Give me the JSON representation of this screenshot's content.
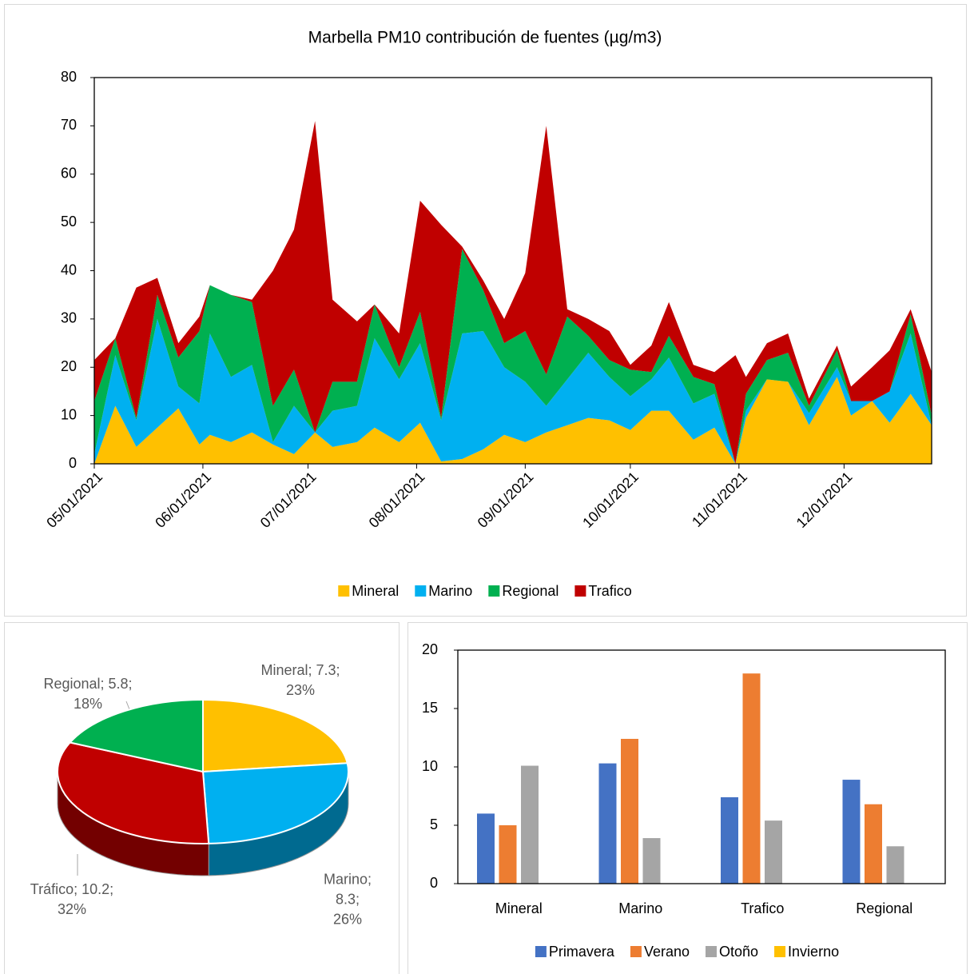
{
  "chart_data": [
    {
      "type": "area",
      "stacked": true,
      "title": "Marbella PM10 contribución de fuentes (µg/m3)",
      "x": [
        "2021-05-01",
        "2021-05-07",
        "2021-05-13",
        "2021-05-19",
        "2021-05-25",
        "2021-05-31",
        "2021-06-03",
        "2021-06-09",
        "2021-06-15",
        "2021-06-21",
        "2021-06-27",
        "2021-07-03",
        "2021-07-08",
        "2021-07-15",
        "2021-07-20",
        "2021-07-27",
        "2021-08-02",
        "2021-08-08",
        "2021-08-14",
        "2021-08-20",
        "2021-08-26",
        "2021-09-01",
        "2021-09-07",
        "2021-09-13",
        "2021-09-19",
        "2021-09-25",
        "2021-10-01",
        "2021-10-07",
        "2021-10-12",
        "2021-10-19",
        "2021-10-25",
        "2021-10-31",
        "2021-11-03",
        "2021-11-09",
        "2021-11-15",
        "2021-11-21",
        "2021-11-29",
        "2021-12-03",
        "2021-12-09",
        "2021-12-14",
        "2021-12-20",
        "2021-12-26"
      ],
      "series": [
        {
          "name": "Mineral",
          "color": "#FFC000",
          "values": [
            0,
            12,
            3.5,
            7.5,
            11.5,
            4,
            6,
            4.5,
            6.5,
            4,
            2,
            6.5,
            3.5,
            4.5,
            7.5,
            4.5,
            8.5,
            0.5,
            1,
            3,
            6,
            4.5,
            6.5,
            8,
            9.5,
            9,
            7,
            11,
            11,
            5,
            7.5,
            0,
            9.5,
            17.5,
            17,
            8,
            18,
            10,
            13,
            8.5,
            14.5,
            8
          ]
        },
        {
          "name": "Marino",
          "color": "#00B0F0",
          "values": [
            2,
            10.5,
            5.5,
            22.5,
            4.5,
            8.5,
            21,
            13.5,
            14,
            0.5,
            10,
            0,
            7.5,
            7.5,
            18.5,
            13,
            16.5,
            8.5,
            26,
            24.5,
            14,
            12.5,
            5.5,
            9.5,
            13.5,
            9,
            7,
            6.5,
            11,
            7.5,
            7,
            0,
            1.5,
            0,
            0,
            2.5,
            2,
            3,
            0,
            6.5,
            12.5,
            0
          ]
        },
        {
          "name": "Regional",
          "color": "#00B050",
          "values": [
            11,
            3.5,
            0.5,
            5,
            6,
            15,
            10,
            17,
            13,
            7.5,
            7.5,
            0,
            6,
            5,
            7,
            2.5,
            6.5,
            0.5,
            17.5,
            8.5,
            5,
            10.5,
            6.5,
            13,
            3.5,
            3.5,
            5.5,
            1.5,
            4.5,
            5.5,
            2,
            0,
            3.5,
            4,
            6,
            1.5,
            3.5,
            0,
            0,
            0,
            4,
            2
          ]
        },
        {
          "name": "Trafico",
          "color": "#C00000",
          "values": [
            8.5,
            0,
            27,
            3.5,
            3,
            3,
            0,
            0,
            0.5,
            28,
            29,
            64.5,
            17,
            12.5,
            0,
            7,
            23,
            40,
            0.5,
            2,
            5,
            12,
            51.5,
            1.5,
            3.5,
            6,
            1,
            5.5,
            7,
            2.5,
            2.5,
            22.5,
            3.5,
            3.5,
            4,
            1.5,
            1,
            3,
            7,
            8.5,
            1,
            9
          ]
        }
      ],
      "xlim": [
        "2021-05-01",
        "2021-12-26"
      ],
      "xticks": [
        {
          "value": "2021-05-01",
          "label": "05/01/2021"
        },
        {
          "value": "2021-06-01",
          "label": "06/01/2021"
        },
        {
          "value": "2021-07-01",
          "label": "07/01/2021"
        },
        {
          "value": "2021-08-01",
          "label": "08/01/2021"
        },
        {
          "value": "2021-09-01",
          "label": "09/01/2021"
        },
        {
          "value": "2021-10-01",
          "label": "10/01/2021"
        },
        {
          "value": "2021-11-01",
          "label": "11/01/2021"
        },
        {
          "value": "2021-12-01",
          "label": "12/01/2021"
        }
      ],
      "ylim": [
        0,
        80
      ],
      "yticks": [
        0,
        10,
        20,
        30,
        40,
        50,
        60,
        70,
        80
      ],
      "legend": "bottom"
    },
    {
      "type": "pie",
      "three_d": true,
      "categories": [
        "Mineral",
        "Marino",
        "Tráfico",
        "Regional"
      ],
      "values": [
        7.3,
        8.3,
        10.2,
        5.8
      ],
      "value_labels": [
        "Mineral; 7.3; 23%",
        "Marino; 8.3; 26%",
        "Tráfico; 10.2; 32%",
        "Regional; 5.8; 18%"
      ],
      "colors": [
        "#FFC000",
        "#00B0F0",
        "#C00000",
        "#00B050"
      ]
    },
    {
      "type": "bar",
      "categories": [
        "Mineral",
        "Marino",
        "Trafico",
        "Regional"
      ],
      "series": [
        {
          "name": "Primavera",
          "color": "#4472C4",
          "values": [
            6,
            10.3,
            7.4,
            8.9
          ]
        },
        {
          "name": "Verano",
          "color": "#ED7D31",
          "values": [
            5,
            12.4,
            18,
            6.8
          ]
        },
        {
          "name": "Otoño",
          "color": "#A5A5A5",
          "values": [
            10.1,
            3.9,
            5.4,
            3.2
          ]
        },
        {
          "name": "Invierno",
          "color": "#FFC000",
          "values": [
            null,
            null,
            null,
            null
          ]
        }
      ],
      "ylim": [
        0,
        20
      ],
      "yticks": [
        0,
        5,
        10,
        15,
        20
      ],
      "legend": "bottom"
    }
  ]
}
